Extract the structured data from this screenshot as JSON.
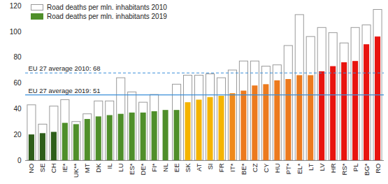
{
  "chart_data": {
    "type": "bar",
    "categories": [
      "NO",
      "SE",
      "CH",
      "IE*",
      "UK**",
      "MT",
      "DK",
      "IL",
      "LU",
      "ES*",
      "DE*",
      "FI*",
      "NL",
      "EE",
      "SK",
      "AT",
      "SI",
      "FR",
      "IT*",
      "BE*",
      "CZ",
      "CY",
      "HU",
      "PT*",
      "EL*",
      "LT",
      "LV",
      "HR",
      "RS*",
      "PL",
      "BG*",
      "RO"
    ],
    "series": [
      {
        "name": "Road deaths per mln. inhabitants 2010",
        "color": "#ffffff",
        "values": [
          43,
          28,
          42,
          47,
          30,
          36,
          46,
          46,
          64,
          53,
          45,
          51,
          null,
          59,
          66,
          66,
          67,
          64,
          70,
          77,
          77,
          73,
          74,
          89,
          113,
          96,
          103,
          99,
          91,
          103,
          105,
          117
        ]
      },
      {
        "name": "Road deaths per mln. inhabitants 2019",
        "color": "#4f8f2a",
        "colors": [
          "#2e5e1a",
          "#2e5e1a",
          "#2e5e1a",
          "#4f8f2a",
          "#4f8f2a",
          "#4f8f2a",
          "#4f8f2a",
          "#4f8f2a",
          "#4f8f2a",
          "#4f8f2a",
          "#4f8f2a",
          "#4f8f2a",
          "#4f8f2a",
          "#4f8f2a",
          "#f5b400",
          "#f5b400",
          "#f5b400",
          "#f5b400",
          "#ef8a1c",
          "#ec7a1e",
          "#ec7a1e",
          "#ec7a1e",
          "#ec7a1e",
          "#ec7a1e",
          "#ec7a1e",
          "#ec7a1e",
          "#e8140f",
          "#e8140f",
          "#e8140f",
          "#e8140f",
          "#e8140f",
          "#e8140f"
        ],
        "values": [
          20,
          21,
          22,
          29,
          28,
          32,
          34,
          35,
          36,
          37,
          37,
          38,
          39,
          39,
          45,
          47,
          49,
          50,
          52,
          54,
          58,
          59,
          62,
          63,
          66,
          66,
          69,
          73,
          76,
          77,
          90,
          96
        ]
      }
    ],
    "annotations": [
      {
        "text": "EU 27 average 2010: 68",
        "value": 68,
        "line_style": "dashed",
        "color": "#3b8fd9"
      },
      {
        "text": "EU 27 average 2019: 51",
        "value": 51,
        "line_style": "solid",
        "color": "#3b8fd9"
      }
    ],
    "ylim": [
      0,
      120
    ],
    "yticks": [
      0,
      20,
      40,
      60,
      80,
      100,
      120
    ],
    "legend": "top-left"
  }
}
